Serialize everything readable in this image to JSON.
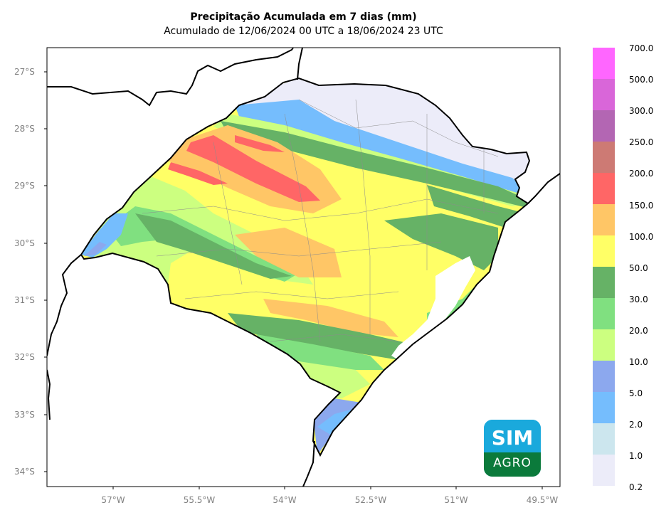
{
  "title": "Precipitação Acumulada em 7 dias (mm)",
  "subtitle": "Acumulado de 12/06/2024 00 UTC a 18/06/2024 23 UTC",
  "lat_labels": [
    "27°S",
    "28°S",
    "29°S",
    "30°S",
    "31°S",
    "32°S",
    "33°S",
    "34°S"
  ],
  "lon_labels": [
    "57°W",
    "55.5°W",
    "54°W",
    "52.5°W",
    "51°W",
    "49.5°W"
  ],
  "colorbar": {
    "labels": [
      "700.0",
      "500.0",
      "300.0",
      "250.0",
      "200.0",
      "150.0",
      "100.0",
      "50.0",
      "30.0",
      "20.0",
      "10.0",
      "5.0",
      "2.0",
      "1.0",
      "0.2"
    ],
    "colors": [
      "#ff66ff",
      "#d966d9",
      "#b366b3",
      "#cd7a74",
      "#ff6666",
      "#ffc666",
      "#ffff66",
      "#66b266",
      "#80e080",
      "#ccff80",
      "#8ca8ee",
      "#75bdfd",
      "#cce6ee",
      "#ececf9"
    ]
  },
  "logo": {
    "line1": "SIM",
    "line2": "AGRO"
  }
}
